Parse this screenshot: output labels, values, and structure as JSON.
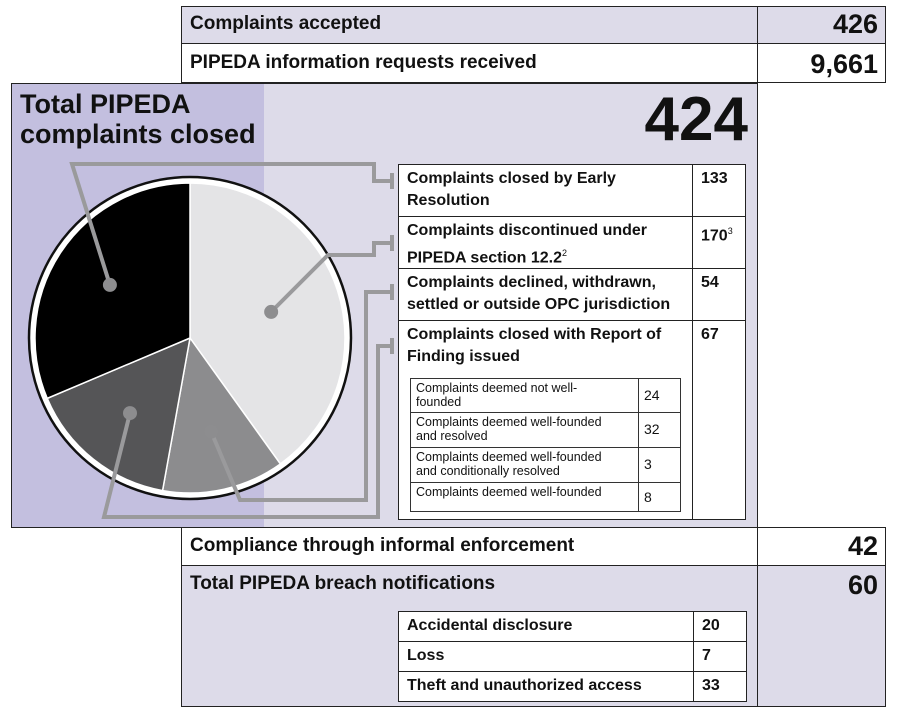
{
  "top": {
    "complaints_accepted": {
      "label": "Complaints accepted",
      "value": "426"
    },
    "info_requests": {
      "label": "PIPEDA information requests received",
      "value": "9,661"
    }
  },
  "closed": {
    "title_line1": "Total PIPEDA",
    "title_line2": "complaints closed",
    "total": "424",
    "rows": [
      {
        "label_line1": "Complaints closed by Early",
        "label_line2": "Resolution",
        "value": "133",
        "sup": ""
      },
      {
        "label_line1": "Complaints discontinued under",
        "label_line2": "PIPEDA section 12.2",
        "label_sup": "2",
        "value": "170",
        "sup": "3"
      },
      {
        "label_line1": "Complaints declined, withdrawn,",
        "label_line2": "settled or outside OPC jurisdiction",
        "value": "54",
        "sup": ""
      },
      {
        "label_line1": "Complaints closed with Report of",
        "label_line2": "Finding issued",
        "value": "67",
        "sup": ""
      }
    ],
    "sub_rows": [
      {
        "line1": "Complaints deemed not well-",
        "line2": "founded",
        "value": "24"
      },
      {
        "line1": "Complaints deemed well-founded",
        "line2": "and resolved",
        "value": "32"
      },
      {
        "line1": "Complaints deemed well-founded",
        "line2": "and conditionally resolved",
        "value": "3"
      },
      {
        "line1": "Complaints deemed well-founded",
        "line2": "",
        "value": "8"
      }
    ]
  },
  "bottom": {
    "informal": {
      "label": "Compliance through informal enforcement",
      "value": "42"
    },
    "breach": {
      "label": "Total PIPEDA breach notifications",
      "value": "60"
    },
    "breach_rows": [
      {
        "label": "Accidental disclosure",
        "value": "20"
      },
      {
        "label": "Loss",
        "value": "7"
      },
      {
        "label": "Theft and unauthorized access",
        "value": "33"
      }
    ]
  },
  "chart_data": {
    "type": "pie",
    "categories": [
      "Complaints closed by Early Resolution",
      "Complaints discontinued under PIPEDA section 12.2",
      "Complaints declined, withdrawn, settled or outside OPC jurisdiction",
      "Complaints closed with Report of Finding issued"
    ],
    "values": [
      133,
      170,
      54,
      67
    ],
    "colors": [
      "#000000",
      "#e4e4e6",
      "#8c8c8e",
      "#555557"
    ],
    "total": 424
  }
}
